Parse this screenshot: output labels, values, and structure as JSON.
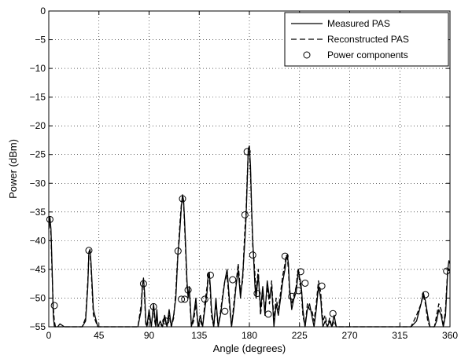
{
  "chart_data": {
    "type": "line",
    "title": "",
    "xlabel": "Angle (degrees)",
    "ylabel": "Power (dBm)",
    "xlim": [
      0,
      360
    ],
    "ylim": [
      -55,
      0
    ],
    "xticks": [
      0,
      45,
      90,
      135,
      180,
      225,
      270,
      315,
      360
    ],
    "yticks": [
      0,
      -5,
      -10,
      -15,
      -20,
      -25,
      -30,
      -35,
      -40,
      -45,
      -50,
      -55
    ],
    "xtick_labels": [
      "0",
      "45",
      "90",
      "135",
      "180",
      "225",
      "270",
      "315",
      "360"
    ],
    "ytick_labels": [
      "0",
      "−5",
      "−10",
      "−15",
      "−20",
      "−25",
      "−30",
      "−35",
      "−40",
      "−45",
      "−50",
      "−55"
    ],
    "grid": true,
    "legend_position": "top-right",
    "series": [
      {
        "name": "Measured PAS",
        "style": "solid",
        "color": "#000000",
        "x": [
          0,
          1,
          2,
          3,
          4,
          5,
          6,
          8,
          10,
          14,
          18,
          22,
          26,
          30,
          33,
          35,
          36,
          37,
          38,
          40,
          44,
          48,
          52,
          56,
          60,
          64,
          68,
          72,
          76,
          80,
          83,
          84,
          85,
          86,
          87,
          88,
          90,
          92,
          94,
          95,
          96,
          97,
          98,
          100,
          102,
          104,
          106,
          108,
          110,
          112,
          114,
          115,
          116,
          117,
          118,
          119,
          120,
          121,
          122,
          123,
          124,
          125,
          126,
          127,
          128,
          130,
          132,
          134,
          136,
          138,
          140,
          142,
          143,
          144,
          145,
          146,
          148,
          150,
          152,
          154,
          156,
          158,
          160,
          162,
          164,
          166,
          168,
          170,
          172,
          174,
          175,
          176,
          177,
          178,
          179,
          180,
          181,
          182,
          183,
          184,
          185,
          186,
          188,
          190,
          192,
          194,
          196,
          198,
          200,
          202,
          204,
          206,
          208,
          210,
          212,
          213,
          214,
          215,
          216,
          218,
          220,
          222,
          223,
          224,
          225,
          226,
          227,
          228,
          230,
          232,
          234,
          236,
          238,
          240,
          242,
          244,
          245,
          246,
          248,
          250,
          252,
          254,
          256,
          258,
          260,
          265,
          270,
          280,
          290,
          300,
          310,
          320,
          325,
          330,
          334,
          336,
          338,
          340,
          342,
          344,
          346,
          348,
          350,
          352,
          354,
          356,
          357,
          358,
          359,
          360
        ],
        "y": [
          -38,
          -35.8,
          -38,
          -45,
          -53,
          -55,
          -55,
          -55,
          -54.5,
          -55,
          -55,
          -55,
          -55,
          -55,
          -54,
          -48,
          -42,
          -41.5,
          -44,
          -52,
          -55,
          -55,
          -55,
          -55,
          -55,
          -55,
          -55,
          -55,
          -55,
          -55,
          -52,
          -48,
          -46.5,
          -49,
          -54,
          -55,
          -52,
          -55,
          -51,
          -53,
          -55,
          -52,
          -55,
          -54,
          -55,
          -53,
          -55,
          -52,
          -55,
          -53,
          -50,
          -46,
          -42,
          -40,
          -37,
          -34,
          -32,
          -33,
          -37,
          -42,
          -47,
          -50,
          -48,
          -51,
          -55,
          -53,
          -50,
          -55,
          -53,
          -55,
          -52,
          -49,
          -46,
          -45.5,
          -48,
          -52,
          -55,
          -50,
          -55,
          -53,
          -50,
          -47,
          -45,
          -50,
          -55,
          -52,
          -48,
          -45,
          -50,
          -46,
          -43,
          -40,
          -36,
          -30,
          -24,
          -23.5,
          -27,
          -34,
          -40,
          -44,
          -48,
          -50,
          -46,
          -52,
          -48,
          -53,
          -47,
          -50,
          -48,
          -55,
          -51,
          -53,
          -50,
          -47,
          -45,
          -43,
          -42.5,
          -44,
          -48,
          -52,
          -50,
          -49,
          -47,
          -45,
          -46.5,
          -47,
          -49,
          -52,
          -55,
          -52,
          -51,
          -53,
          -55,
          -52,
          -48,
          -50,
          -53,
          -55,
          -54,
          -55,
          -54,
          -55,
          -53,
          -55,
          -55,
          -55,
          -55,
          -55,
          -55,
          -55,
          -55,
          -55,
          -55,
          -54,
          -51,
          -49,
          -50.5,
          -53,
          -55,
          -55,
          -55,
          -54,
          -52,
          -53,
          -55,
          -53,
          -49,
          -45,
          -43.5,
          -44
        ]
      },
      {
        "name": "Reconstructed PAS",
        "style": "dashed",
        "color": "#000000",
        "x": [
          0,
          1,
          2,
          3,
          4,
          5,
          6,
          8,
          10,
          14,
          18,
          22,
          26,
          30,
          33,
          35,
          36,
          37,
          38,
          40,
          44,
          48,
          52,
          56,
          60,
          64,
          68,
          72,
          76,
          80,
          83,
          84,
          85,
          86,
          87,
          88,
          90,
          92,
          94,
          95,
          96,
          97,
          98,
          100,
          102,
          104,
          106,
          108,
          110,
          112,
          114,
          115,
          116,
          117,
          118,
          119,
          120,
          121,
          122,
          123,
          124,
          125,
          126,
          127,
          128,
          130,
          132,
          134,
          136,
          138,
          140,
          142,
          143,
          144,
          145,
          146,
          148,
          150,
          152,
          154,
          156,
          158,
          160,
          162,
          164,
          166,
          168,
          170,
          172,
          174,
          175,
          176,
          177,
          178,
          179,
          180,
          181,
          182,
          183,
          184,
          185,
          186,
          188,
          190,
          192,
          194,
          196,
          198,
          200,
          202,
          204,
          206,
          208,
          210,
          212,
          213,
          214,
          215,
          216,
          218,
          220,
          222,
          223,
          224,
          225,
          226,
          227,
          228,
          230,
          232,
          234,
          236,
          238,
          240,
          242,
          244,
          245,
          246,
          248,
          250,
          252,
          254,
          256,
          258,
          260,
          265,
          270,
          280,
          290,
          300,
          310,
          320,
          325,
          330,
          334,
          336,
          338,
          340,
          342,
          344,
          346,
          348,
          350,
          352,
          354,
          356,
          357,
          358,
          359,
          360
        ],
        "y": [
          -37,
          -36.4,
          -39,
          -46,
          -51.5,
          -54,
          -55,
          -55,
          -55,
          -55,
          -55,
          -55,
          -55,
          -55,
          -53.5,
          -47,
          -42,
          -41.8,
          -45,
          -53,
          -55,
          -55,
          -55,
          -55,
          -55,
          -55,
          -55,
          -55,
          -55,
          -55,
          -51,
          -47.5,
          -47,
          -50,
          -54.5,
          -55,
          -53,
          -55,
          -51.5,
          -54,
          -55,
          -53.5,
          -55,
          -54.5,
          -55,
          -53.5,
          -55,
          -53,
          -55,
          -53.5,
          -49,
          -45,
          -42,
          -39,
          -36,
          -33.5,
          -32.5,
          -33.5,
          -38,
          -43,
          -48,
          -49.5,
          -48.5,
          -52,
          -55,
          -54,
          -51,
          -55,
          -54,
          -55,
          -51,
          -48,
          -46,
          -46.5,
          -49,
          -53,
          -55,
          -51,
          -55,
          -52.5,
          -49.5,
          -47,
          -46,
          -51,
          -55,
          -51,
          -47.5,
          -44,
          -49,
          -47,
          -42,
          -38,
          -35,
          -29,
          -24.5,
          -24.5,
          -28,
          -35,
          -41,
          -43,
          -46,
          -49,
          -45,
          -53,
          -49,
          -52,
          -48,
          -51,
          -47,
          -54,
          -50,
          -52,
          -49,
          -46,
          -44,
          -42.5,
          -43,
          -45,
          -49,
          -51,
          -49.5,
          -48,
          -46,
          -45.5,
          -47,
          -48,
          -50,
          -53,
          -55,
          -51,
          -52,
          -52,
          -54,
          -51,
          -47,
          -49,
          -52,
          -54,
          -53,
          -55,
          -53.5,
          -55,
          -54,
          -55,
          -55,
          -55,
          -55,
          -55,
          -55,
          -55,
          -55,
          -55,
          -55,
          -53,
          -51,
          -49.5,
          -51,
          -54,
          -55,
          -55,
          -55,
          -53,
          -51,
          -52,
          -55,
          -52,
          -48,
          -45,
          -45.2,
          -45
        ]
      },
      {
        "name": "Power components",
        "style": "marker-circle",
        "color": "#000000",
        "x": [
          1,
          5,
          36,
          85,
          94,
          105,
          116,
          119,
          120,
          122,
          125,
          140,
          145,
          158,
          165,
          176,
          178,
          183,
          187,
          197,
          212,
          218,
          224,
          226,
          230,
          245,
          255,
          338,
          357
        ],
        "y": [
          -36.3,
          -51.3,
          -41.7,
          -47.5,
          -51.5,
          -54,
          -41.8,
          -50.2,
          -32.7,
          -50.2,
          -48.6,
          -50.2,
          -46,
          -52.3,
          -46.8,
          -35.5,
          -24.5,
          -42.5,
          -49.2,
          -52.8,
          -42.7,
          -49.7,
          -48.7,
          -45.4,
          -47.4,
          -47.9,
          -52.7,
          -49.4,
          -45.3
        ]
      }
    ]
  }
}
